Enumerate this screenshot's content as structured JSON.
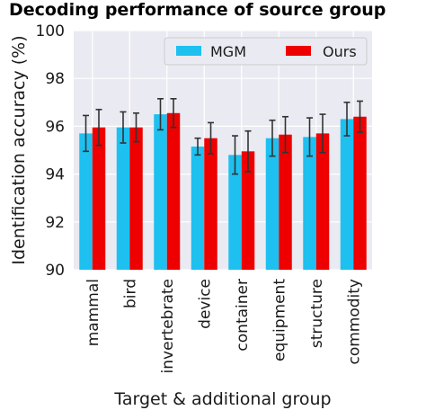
{
  "chart_data": {
    "type": "bar",
    "title": "Decoding performance of source group",
    "xlabel": "Target & additional group",
    "ylabel": "Identification accuracy (%)",
    "ylim": [
      90,
      100
    ],
    "yticks": [
      90,
      92,
      94,
      96,
      98,
      100
    ],
    "grid": true,
    "legend_position": "top-right",
    "categories": [
      "mammal",
      "bird",
      "invertebrate",
      "device",
      "container",
      "equipment",
      "structure",
      "commodity"
    ],
    "series": [
      {
        "name": "MGM",
        "color": "#1ec0f0",
        "values": [
          95.7,
          95.95,
          96.5,
          95.15,
          94.8,
          95.5,
          95.55,
          96.3
        ],
        "error": [
          0.75,
          0.65,
          0.65,
          0.35,
          0.8,
          0.75,
          0.8,
          0.7
        ]
      },
      {
        "name": "Ours",
        "color": "#ee0000",
        "values": [
          95.95,
          95.95,
          96.55,
          95.5,
          94.95,
          95.65,
          95.7,
          96.4
        ],
        "error": [
          0.75,
          0.6,
          0.6,
          0.65,
          0.85,
          0.75,
          0.8,
          0.65
        ]
      }
    ],
    "errorbar_color": "#333333"
  }
}
